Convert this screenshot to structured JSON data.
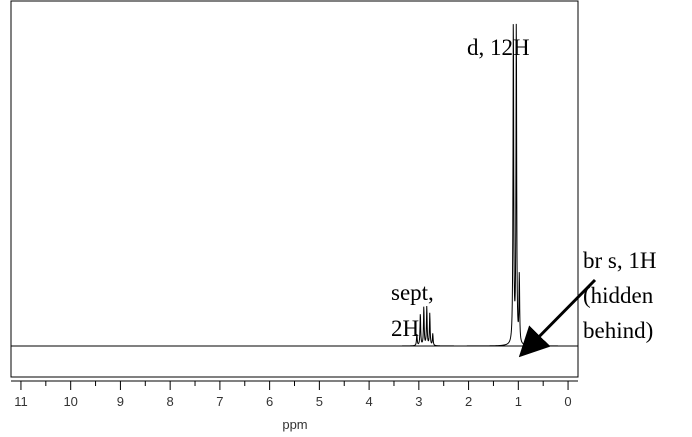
{
  "chart_data": {
    "type": "line",
    "title": "",
    "xlabel": "ppm",
    "ylabel": "",
    "x_reversed": true,
    "xlim": [
      11.2,
      -0.2
    ],
    "ylim": [
      0,
      1
    ],
    "x_ticks": [
      "11",
      "10",
      "9",
      "8",
      "7",
      "6",
      "5",
      "4",
      "3",
      "2",
      "1",
      "0"
    ],
    "grid": false,
    "legend": "none",
    "series": [
      {
        "peaks": [
          {
            "ppm": 3.04,
            "height": 0.035
          },
          {
            "ppm": 2.97,
            "height": 0.095
          },
          {
            "ppm": 2.9,
            "height": 0.115
          },
          {
            "ppm": 2.84,
            "height": 0.115
          },
          {
            "ppm": 2.78,
            "height": 0.095
          },
          {
            "ppm": 2.72,
            "height": 0.035
          },
          {
            "ppm": 1.1,
            "height": 0.98
          },
          {
            "ppm": 1.04,
            "height": 0.96
          },
          {
            "ppm": 0.98,
            "height": 0.2
          }
        ]
      }
    ],
    "annotations": [
      {
        "lines": [
          "d, 12H"
        ],
        "ppm": 1.07
      },
      {
        "lines": [
          "sept,",
          "2H"
        ],
        "ppm": 2.88
      },
      {
        "lines": [
          "br s, 1H",
          "(hidden",
          "behind)"
        ],
        "ppm": 0.98
      }
    ]
  }
}
